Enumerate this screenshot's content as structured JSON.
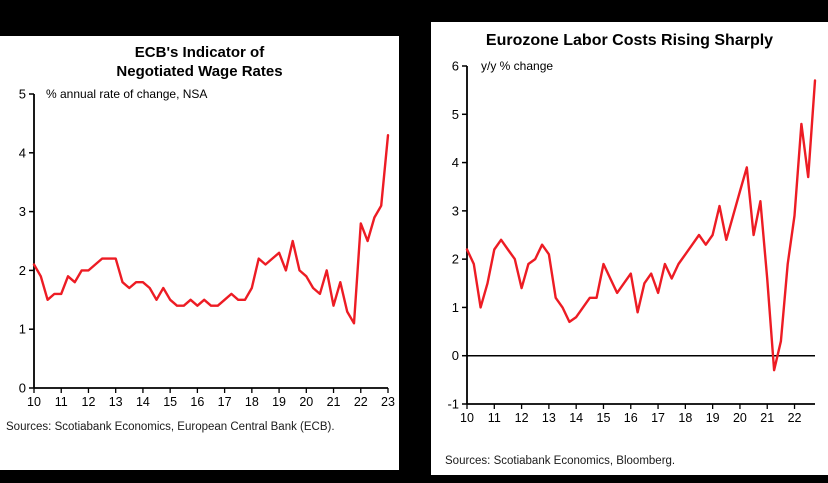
{
  "page": {
    "background_color": "#000000",
    "panel_color": "#ffffff"
  },
  "chart_data": [
    {
      "type": "line",
      "title": "ECB's Indicator of Negotiated Wage Rates",
      "title_lines": [
        "ECB's Indicator of",
        "Negotiated Wage Rates"
      ],
      "annotation": "% annual rate of change, NSA",
      "source": "Sources: Scotiabank Economics, European Central Bank (ECB).",
      "xlabel": "",
      "ylabel": "",
      "series_color": "#ed1c24",
      "axis_color": "#000000",
      "frequency": "quarterly",
      "x_start": "2010Q1",
      "x_end": "2023Q1",
      "x_ticks_every": 4,
      "x_tick_labels": [
        "10",
        "11",
        "12",
        "13",
        "14",
        "15",
        "16",
        "17",
        "18",
        "19",
        "20",
        "21",
        "22",
        "23"
      ],
      "ylim": [
        0,
        5
      ],
      "y_ticks": [
        0,
        1,
        2,
        3,
        4,
        5
      ],
      "zero_line": false,
      "grid": false,
      "legend": false,
      "values": [
        2.1,
        1.9,
        1.5,
        1.6,
        1.6,
        1.9,
        1.8,
        2.0,
        2.0,
        2.1,
        2.2,
        2.2,
        2.2,
        1.8,
        1.7,
        1.8,
        1.8,
        1.7,
        1.5,
        1.7,
        1.5,
        1.4,
        1.4,
        1.5,
        1.4,
        1.5,
        1.4,
        1.4,
        1.5,
        1.6,
        1.5,
        1.5,
        1.7,
        2.2,
        2.1,
        2.2,
        2.3,
        2.0,
        2.5,
        2.0,
        1.9,
        1.7,
        1.6,
        2.0,
        1.4,
        1.8,
        1.3,
        1.1,
        2.8,
        2.5,
        2.9,
        3.1,
        4.3
      ]
    },
    {
      "type": "line",
      "title": "Eurozone Labor Costs Rising Sharply",
      "title_lines": [
        "Eurozone Labor Costs Rising Sharply"
      ],
      "annotation": "y/y % change",
      "source": "Sources: Scotiabank Economics, Bloomberg.",
      "xlabel": "",
      "ylabel": "",
      "series_color": "#ed1c24",
      "axis_color": "#000000",
      "frequency": "quarterly",
      "x_start": "2010Q1",
      "x_end": "2022Q4",
      "x_ticks_every": 4,
      "x_tick_labels": [
        "10",
        "11",
        "12",
        "13",
        "14",
        "15",
        "16",
        "17",
        "18",
        "19",
        "20",
        "21",
        "22"
      ],
      "ylim": [
        -1,
        6
      ],
      "y_ticks": [
        -1,
        0,
        1,
        2,
        3,
        4,
        5,
        6
      ],
      "zero_line": true,
      "grid": false,
      "legend": false,
      "values": [
        2.2,
        1.9,
        1.0,
        1.5,
        2.2,
        2.4,
        2.2,
        2.0,
        1.4,
        1.9,
        2.0,
        2.3,
        2.1,
        1.2,
        1.0,
        0.7,
        0.8,
        1.0,
        1.2,
        1.2,
        1.9,
        1.6,
        1.3,
        1.5,
        1.7,
        0.9,
        1.5,
        1.7,
        1.3,
        1.9,
        1.6,
        1.9,
        2.1,
        2.3,
        2.5,
        2.3,
        2.5,
        3.1,
        2.4,
        2.9,
        3.4,
        3.9,
        2.5,
        3.2,
        1.6,
        -0.3,
        0.3,
        1.9,
        2.9,
        4.8,
        3.7,
        5.7
      ]
    }
  ]
}
